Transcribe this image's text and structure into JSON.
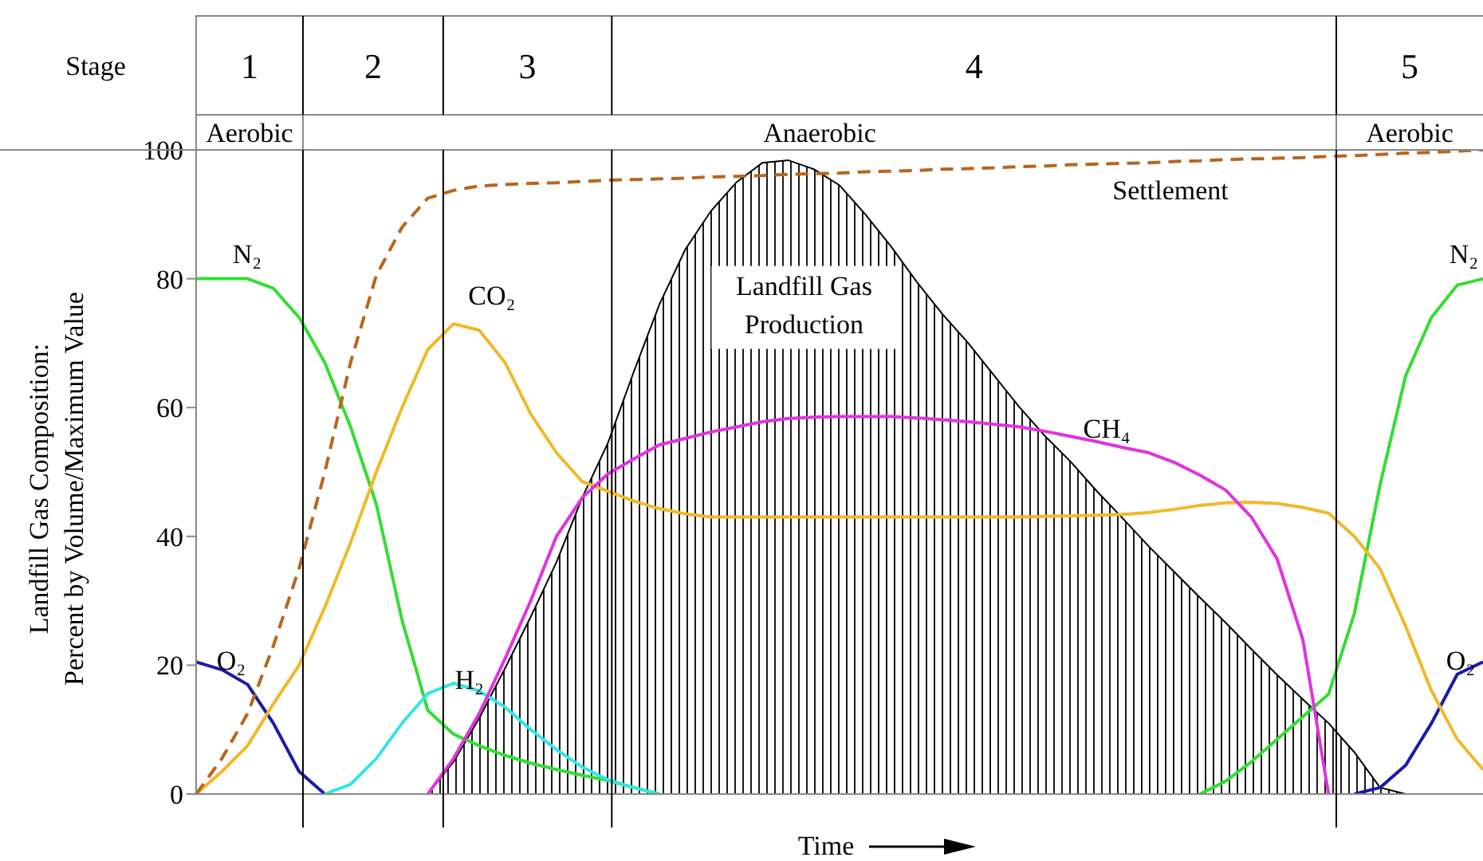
{
  "chart_data": {
    "type": "line",
    "xlabel": "Time",
    "ylabel": "Landfill Gas Composition:\nPercent by Volume/Maximum Value",
    "ylim": [
      0,
      100
    ],
    "yticks": [
      0,
      20,
      40,
      60,
      80,
      100
    ],
    "tick_labels": "y",
    "grid": false,
    "marker": "none",
    "annotations": [
      "Stage",
      "1",
      "2",
      "3",
      "4",
      "5",
      "Aerobic",
      "Anaerobic",
      "Aerobic"
    ],
    "categories": [
      null,
      null,
      null,
      null,
      null,
      null,
      null,
      null,
      null,
      null,
      null,
      null,
      null,
      null,
      null,
      null,
      null,
      null,
      null,
      null,
      null,
      null,
      null,
      null,
      null,
      null,
      null,
      null,
      null,
      null,
      null,
      null,
      null,
      null,
      null,
      null,
      null,
      null,
      null,
      null,
      null,
      null,
      null,
      null,
      null,
      null,
      null,
      null,
      null,
      null,
      null
    ],
    "series": [
      {
        "name": "N₂",
        "color": "#33dd33",
        "values": [
          80,
          80,
          80,
          78.5,
          74,
          67,
          57,
          45,
          27,
          13,
          9.3,
          7.5,
          6,
          4.8,
          3.8,
          2.9,
          2.1,
          1,
          0,
          null,
          null,
          null,
          null,
          null,
          null,
          null,
          null,
          null,
          null,
          null,
          null,
          null,
          null,
          null,
          null,
          null,
          null,
          null,
          null,
          null,
          null,
          null,
          null,
          null,
          null,
          null,
          null,
          null,
          null,
          null,
          null
        ]
      },
      {
        "name": "N₂",
        "color": "#33dd33",
        "values": [
          null,
          null,
          null,
          null,
          null,
          null,
          null,
          null,
          null,
          null,
          null,
          null,
          null,
          null,
          null,
          null,
          null,
          null,
          null,
          null,
          null,
          null,
          null,
          null,
          null,
          null,
          null,
          null,
          null,
          null,
          null,
          null,
          null,
          null,
          null,
          null,
          null,
          null,
          null,
          0,
          2,
          5,
          8.5,
          12,
          15.5,
          28,
          48,
          65,
          74,
          79,
          80
        ]
      },
      {
        "name": "O₂",
        "color": "#1a1aaa",
        "values": [
          20.5,
          19.3,
          17,
          11,
          3.5,
          0,
          null,
          null,
          null,
          null,
          null,
          null,
          null,
          null,
          null,
          null,
          null,
          null,
          null,
          null,
          null,
          null,
          null,
          null,
          null,
          null,
          null,
          null,
          null,
          null,
          null,
          null,
          null,
          null,
          null,
          null,
          null,
          null,
          null,
          null,
          null,
          null,
          null,
          null,
          null,
          null,
          null,
          null,
          null,
          null,
          null
        ]
      },
      {
        "name": "O₂",
        "color": "#1a1aaa",
        "values": [
          null,
          null,
          null,
          null,
          null,
          null,
          null,
          null,
          null,
          null,
          null,
          null,
          null,
          null,
          null,
          null,
          null,
          null,
          null,
          null,
          null,
          null,
          null,
          null,
          null,
          null,
          null,
          null,
          null,
          null,
          null,
          null,
          null,
          null,
          null,
          null,
          null,
          null,
          null,
          null,
          null,
          null,
          null,
          null,
          null,
          0,
          1,
          4.5,
          11,
          18.6,
          20.5
        ]
      },
      {
        "name": "CO₂",
        "color": "#f0b929",
        "values": [
          0,
          3.5,
          7.5,
          14,
          20,
          29,
          39,
          50,
          60,
          69,
          73,
          72,
          67,
          59,
          53,
          48.5,
          47,
          45.5,
          44.3,
          43.5,
          43,
          43,
          43,
          43,
          43,
          43,
          43,
          43,
          43,
          43,
          43,
          43,
          43,
          43.1,
          43.2,
          43.3,
          43.4,
          43.7,
          44.2,
          44.8,
          45.2,
          45.3,
          45.1,
          44.5,
          43.6,
          40,
          35,
          26,
          16,
          8.5,
          3.8
        ]
      },
      {
        "name": "H₂",
        "color": "#33e5e5",
        "values": [
          null,
          null,
          null,
          null,
          null,
          0,
          1.5,
          5.5,
          11,
          15.6,
          17.2,
          16,
          13.5,
          10,
          6.9,
          4.2,
          2.2,
          1,
          0,
          null,
          null,
          null,
          null,
          null,
          null,
          null,
          null,
          null,
          null,
          null,
          null,
          null,
          null,
          null,
          null,
          null,
          null,
          null,
          null,
          null,
          null,
          null,
          null,
          null,
          null,
          null,
          null,
          null,
          null,
          null,
          null
        ]
      },
      {
        "name": "CH₄",
        "color": "#e033e0",
        "values": [
          null,
          null,
          null,
          null,
          null,
          null,
          null,
          null,
          null,
          0,
          5.5,
          12.5,
          21,
          30,
          40,
          46,
          49.7,
          52,
          54.2,
          55.2,
          56.2,
          57,
          57.8,
          58.3,
          58.5,
          58.6,
          58.6,
          58.6,
          58.4,
          58.1,
          57.8,
          57.4,
          57,
          56.3,
          55.5,
          54.7,
          53.8,
          53,
          51.5,
          49.5,
          47.2,
          43,
          36.5,
          24,
          0,
          null,
          null,
          null,
          null,
          null,
          null
        ]
      },
      {
        "name": "Landfill Gas Production",
        "type": "area",
        "color": "#000000",
        "values": [
          null,
          null,
          null,
          null,
          null,
          null,
          null,
          null,
          null,
          0,
          5,
          11.8,
          19.5,
          27.5,
          36,
          46,
          54.5,
          65.5,
          76,
          84.5,
          90.5,
          95,
          98,
          98.4,
          97,
          94.5,
          90,
          85,
          79.5,
          74.5,
          70,
          65,
          60,
          55.5,
          51.5,
          47,
          42.8,
          38.5,
          34.5,
          30.5,
          26.6,
          22.5,
          18.5,
          14.7,
          11,
          6.5,
          1,
          0,
          null,
          null,
          null
        ]
      },
      {
        "name": "Settlement",
        "line_style": "dashed",
        "color": "#b8651e",
        "values": [
          0,
          5.5,
          12.5,
          23,
          35,
          50,
          67,
          80.5,
          88,
          92.5,
          93.7,
          94.4,
          94.6,
          94.8,
          94.9,
          95.1,
          95.3,
          95.4,
          95.5,
          95.6,
          95.8,
          95.9,
          96,
          96.2,
          96.3,
          96.4,
          96.6,
          96.7,
          96.8,
          97,
          97.1,
          97.2,
          97.4,
          97.5,
          97.7,
          97.8,
          97.9,
          98,
          98.2,
          98.3,
          98.5,
          98.6,
          98.7,
          98.8,
          99,
          99.1,
          99.3,
          99.5,
          99.6,
          99.8,
          100
        ]
      }
    ]
  }
}
